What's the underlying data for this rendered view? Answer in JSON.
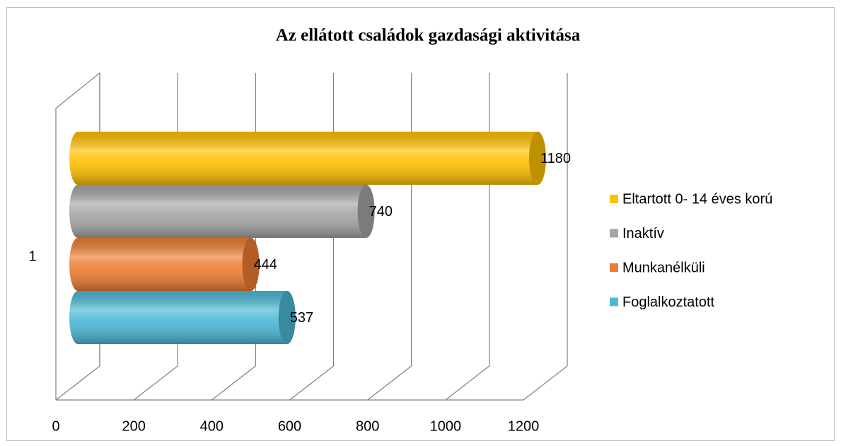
{
  "chart_data": {
    "type": "bar3d",
    "orientation": "horizontal",
    "title": "Az ellátott családok gazdasági aktivitása",
    "categories": [
      "1"
    ],
    "series": [
      {
        "name": "Eltartott 0- 14 éves korú",
        "color": "#ffc000",
        "values": [
          1180
        ]
      },
      {
        "name": "Inaktív",
        "color": "#a5a5a5",
        "values": [
          740
        ]
      },
      {
        "name": "Munkanélküli",
        "color": "#ed7d31",
        "values": [
          444
        ]
      },
      {
        "name": "Foglalkoztatott",
        "color": "#4bb8d6",
        "values": [
          537
        ]
      }
    ],
    "xlim": [
      0,
      1200
    ],
    "xticks": [
      0,
      200,
      400,
      600,
      800,
      1000,
      1200
    ],
    "grid": true,
    "legend": "right"
  }
}
